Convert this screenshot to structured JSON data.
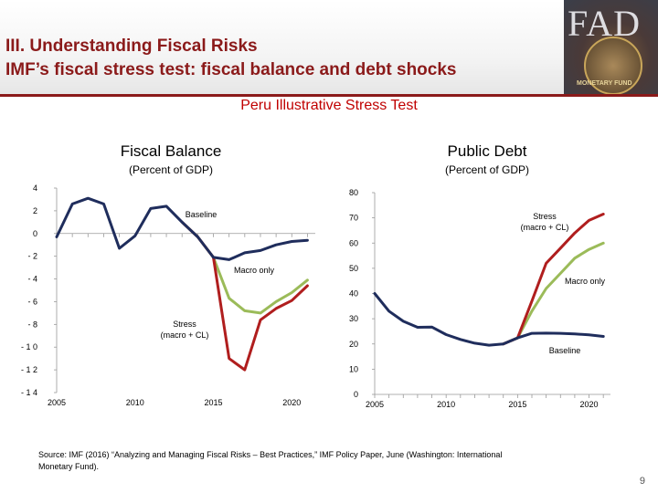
{
  "header": {
    "title_line1": "III. Understanding Fiscal Risks",
    "title_line2": "IMF’s fiscal stress test: fiscal balance and debt shocks",
    "logo_text": "FAD",
    "logo_caption": "MONETARY FUND"
  },
  "subtitle": "Peru Illustrative Stress Test",
  "colors": {
    "baseline": "#1f2d5c",
    "stress": "#b01e1e",
    "macro_only": "#9bbb59",
    "title": "#8b1a1a",
    "subtitle": "#c00000"
  },
  "chart_data": [
    {
      "type": "line",
      "title": "Fiscal Balance",
      "subtitle": "(Percent of GDP)",
      "xlabel": "",
      "ylabel": "",
      "xlim": [
        2005,
        2021.5
      ],
      "ylim": [
        -14,
        4
      ],
      "yticks": [
        4,
        2,
        0,
        -2,
        -4,
        -6,
        -8,
        -10,
        -12,
        -14
      ],
      "ytick_labels": [
        "4",
        "2",
        "0",
        "- 2",
        "- 4",
        "- 6",
        "- 8",
        "- 1 0",
        "- 1 2",
        "- 1 4"
      ],
      "xticks": [
        2005,
        2010,
        2015,
        2020
      ],
      "xtick_labels": [
        "2005",
        "2010",
        "2015",
        "2020"
      ],
      "series": [
        {
          "name": "Baseline",
          "x": [
            2005,
            2006,
            2007,
            2008,
            2009,
            2010,
            2011,
            2012,
            2013,
            2014,
            2015,
            2016,
            2017,
            2018,
            2019,
            2020,
            2021
          ],
          "values": [
            -0.3,
            2.6,
            3.1,
            2.6,
            -1.3,
            -0.2,
            2.2,
            2.4,
            1.0,
            -0.3,
            -2.1,
            -2.3,
            -1.7,
            -1.5,
            -1.0,
            -0.7,
            -0.6
          ]
        },
        {
          "name": "Macro only",
          "x": [
            2013,
            2014,
            2015,
            2016,
            2017,
            2018,
            2019,
            2020,
            2021
          ],
          "values": [
            1.0,
            -0.3,
            -2.1,
            -5.7,
            -6.8,
            -7.0,
            -6.0,
            -5.2,
            -4.1
          ]
        },
        {
          "name": "Stress\n(macro + CL)",
          "x": [
            2013,
            2014,
            2015,
            2016,
            2017,
            2018,
            2019,
            2020,
            2021
          ],
          "values": [
            1.0,
            -0.3,
            -2.1,
            -11.0,
            -12.0,
            -7.6,
            -6.6,
            -5.9,
            -4.6
          ]
        }
      ],
      "annotations": [
        {
          "series": "Baseline",
          "text": "Baseline"
        },
        {
          "series": "Macro only",
          "text": "Macro only"
        },
        {
          "series": "Stress",
          "text": "Stress\n(macro + CL)"
        }
      ]
    },
    {
      "type": "line",
      "title": "Public Debt",
      "subtitle": "(Percent of GDP)",
      "xlabel": "",
      "ylabel": "",
      "xlim": [
        2005,
        2021.5
      ],
      "ylim": [
        0,
        80
      ],
      "yticks": [
        80,
        70,
        60,
        50,
        40,
        30,
        20,
        10,
        0
      ],
      "ytick_labels": [
        "80",
        "70",
        "60",
        "50",
        "40",
        "30",
        "20",
        "10",
        "0"
      ],
      "xticks": [
        2005,
        2010,
        2015,
        2020
      ],
      "xtick_labels": [
        "2005",
        "2010",
        "2015",
        "2020"
      ],
      "series": [
        {
          "name": "Baseline",
          "x": [
            2005,
            2006,
            2007,
            2008,
            2009,
            2010,
            2011,
            2012,
            2013,
            2014,
            2015,
            2016,
            2017,
            2018,
            2019,
            2020,
            2021
          ],
          "values": [
            40,
            33,
            29,
            26.6,
            26.7,
            23.7,
            21.8,
            20.3,
            19.5,
            20.0,
            22.4,
            24.2,
            24.3,
            24.2,
            24.0,
            23.6,
            23.0
          ]
        },
        {
          "name": "Macro only",
          "x": [
            2014,
            2015,
            2016,
            2017,
            2018,
            2019,
            2020,
            2021
          ],
          "values": [
            20.0,
            22.4,
            33.0,
            42.0,
            48.0,
            54.0,
            57.5,
            60.0
          ]
        },
        {
          "name": "Stress\n(macro + CL)",
          "x": [
            2014,
            2015,
            2016,
            2017,
            2018,
            2019,
            2020,
            2021
          ],
          "values": [
            20.0,
            22.4,
            37.0,
            52.0,
            58.0,
            64.0,
            69.0,
            71.5
          ]
        }
      ],
      "annotations": [
        {
          "series": "Stress",
          "text": "Stress\n(macro + CL)"
        },
        {
          "series": "Macro only",
          "text": "Macro only"
        },
        {
          "series": "Baseline",
          "text": "Baseline"
        }
      ]
    }
  ],
  "source": "Source: IMF (2016) “Analyzing and Managing Fiscal Risks – Best Practices,” IMF Policy Paper, June (Washington: International Monetary Fund).",
  "page_number": "9"
}
